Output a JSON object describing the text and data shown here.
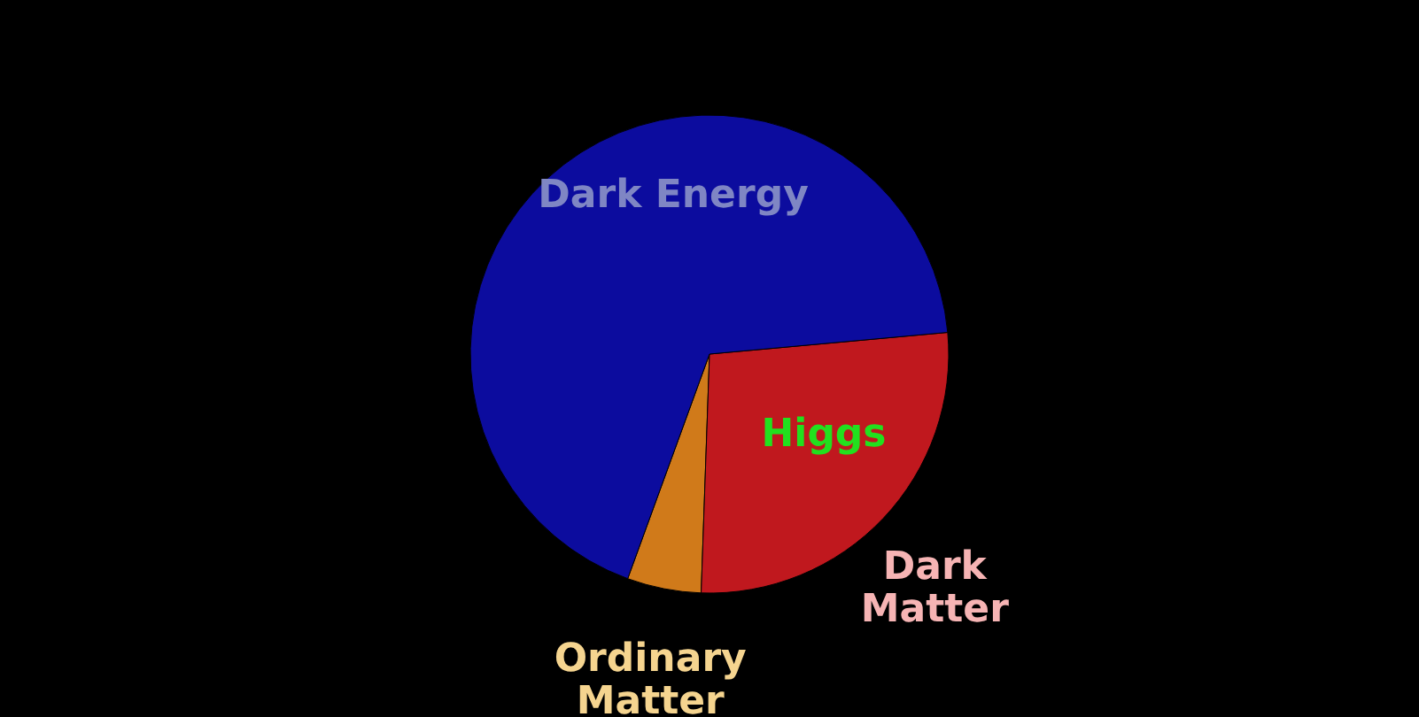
{
  "chart_data": {
    "type": "pie",
    "categories": [
      "Ordinary Matter",
      "Dark Matter",
      "Dark Energy"
    ],
    "values": [
      5,
      27,
      68
    ],
    "colors": [
      "#d07a1a",
      "#c0181e",
      "#0c0c9e"
    ],
    "annotations": [
      "Higgs"
    ]
  }
}
